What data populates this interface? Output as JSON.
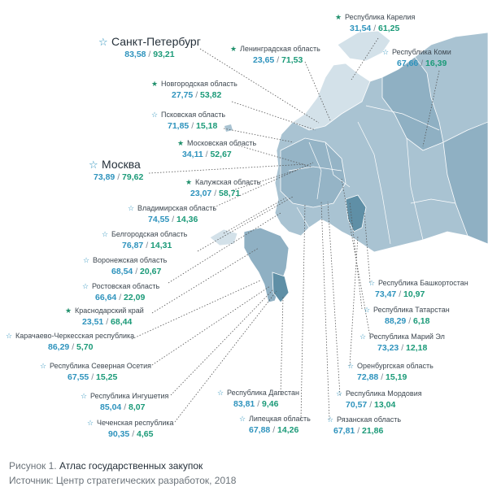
{
  "regions": [
    {
      "id": "spb",
      "name": "Санкт-Петербург",
      "v1": "83,58",
      "v2": "93,21",
      "star": "outline",
      "big": true
    },
    {
      "id": "len",
      "name": "Ленинградская область",
      "v1": "23,65",
      "v2": "71,53",
      "star": "filled"
    },
    {
      "id": "kar",
      "name": "Республика Карелия",
      "v1": "31,54",
      "v2": "61,25",
      "star": "filled"
    },
    {
      "id": "komi",
      "name": "Республика Коми",
      "v1": "67,66",
      "v2": "16,39",
      "star": "outline"
    },
    {
      "id": "nov",
      "name": "Новгородская область",
      "v1": "27,75",
      "v2": "53,82",
      "star": "filled"
    },
    {
      "id": "psk",
      "name": "Псковская область",
      "v1": "71,85",
      "v2": "15,18",
      "star": "outline"
    },
    {
      "id": "mos",
      "name": "Московская область",
      "v1": "34,11",
      "v2": "52,67",
      "star": "filled"
    },
    {
      "id": "moscow",
      "name": "Москва",
      "v1": "73,89",
      "v2": "79,62",
      "star": "outline",
      "big": true
    },
    {
      "id": "kal",
      "name": "Калужская область",
      "v1": "23,07",
      "v2": "58,71",
      "star": "filled"
    },
    {
      "id": "vla",
      "name": "Владимирская область",
      "v1": "74,55",
      "v2": "14,36",
      "star": "outline"
    },
    {
      "id": "bel",
      "name": "Белгородская область",
      "v1": "76,87",
      "v2": "14,31",
      "star": "outline"
    },
    {
      "id": "vor",
      "name": "Воронежская область",
      "v1": "68,54",
      "v2": "20,67",
      "star": "outline"
    },
    {
      "id": "ros",
      "name": "Ростовская область",
      "v1": "66,64",
      "v2": "22,09",
      "star": "outline"
    },
    {
      "id": "kra",
      "name": "Краснодарский край",
      "v1": "23,51",
      "v2": "68,44",
      "star": "filled"
    },
    {
      "id": "kch",
      "name": "Карачаево-Черкесская республика",
      "v1": "86,29",
      "v2": "5,70",
      "star": "outline"
    },
    {
      "id": "oset",
      "name": "Республика Северная Осетия",
      "v1": "67,55",
      "v2": "15,25",
      "star": "outline"
    },
    {
      "id": "ing",
      "name": "Республика Ингушетия",
      "v1": "85,04",
      "v2": "8,07",
      "star": "outline"
    },
    {
      "id": "che",
      "name": "Чеченская республика",
      "v1": "90,35",
      "v2": "4,65",
      "star": "outline"
    },
    {
      "id": "dag",
      "name": "Республика Дагестан",
      "v1": "83,81",
      "v2": "9,46",
      "star": "outline"
    },
    {
      "id": "lip",
      "name": "Липецкая область",
      "v1": "67,88",
      "v2": "14,26",
      "star": "outline"
    },
    {
      "id": "ryaz",
      "name": "Рязанская область",
      "v1": "67,81",
      "v2": "21,86",
      "star": "outline"
    },
    {
      "id": "mord",
      "name": "Республика Мордовия",
      "v1": "70,57",
      "v2": "13,04",
      "star": "outline"
    },
    {
      "id": "oren",
      "name": "Оренбургская область",
      "v1": "72,88",
      "v2": "15,19",
      "star": "outline"
    },
    {
      "id": "mari",
      "name": "Республика Марий Эл",
      "v1": "73,23",
      "v2": "12,18",
      "star": "outline"
    },
    {
      "id": "tat",
      "name": "Республика Татарстан",
      "v1": "88,29",
      "v2": "6,18",
      "star": "outline"
    },
    {
      "id": "bash",
      "name": "Республика Башкортостан",
      "v1": "73,47",
      "v2": "10,97",
      "star": "outline"
    }
  ],
  "caption": {
    "prefix": "Рисунок 1.",
    "title": "Атлас государственных закупок",
    "source": "Источник: Центр стратегических разработок, 2018"
  },
  "colors": {
    "value1": "#2e93bd",
    "value2": "#1b9a78",
    "land": "#a9c3d2",
    "land_dark": "#5f8fa6",
    "land_light": "#d3e1e9"
  }
}
